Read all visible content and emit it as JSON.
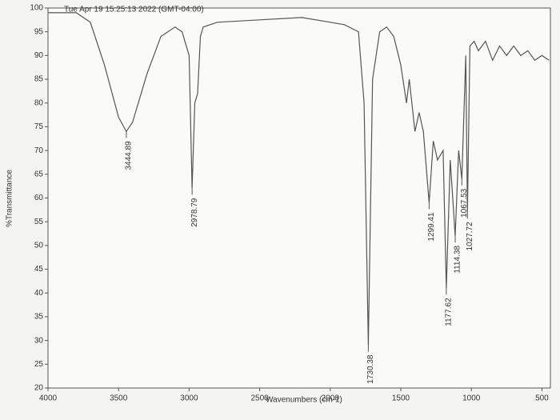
{
  "chart_data": {
    "type": "line",
    "title": "Tue Apr 19 15:25:13 2022 (GMT-04:00)",
    "xlabel": "Wavenumbers (cm-1)",
    "ylabel": "%Transmittance",
    "color": "#555555",
    "xlim": [
      4000,
      440
    ],
    "xticks": [
      4000,
      3500,
      3000,
      2500,
      2000,
      1500,
      1000,
      500
    ],
    "ylim": [
      20,
      100
    ],
    "yticks": [
      20,
      25,
      30,
      35,
      40,
      45,
      50,
      55,
      60,
      65,
      70,
      75,
      80,
      85,
      90,
      95,
      100
    ],
    "x": [
      4000,
      3800,
      3700,
      3600,
      3500,
      3444.89,
      3400,
      3300,
      3200,
      3100,
      3050,
      3000,
      2978.79,
      2960,
      2940,
      2920,
      2900,
      2800,
      2500,
      2200,
      2000,
      1900,
      1800,
      1760,
      1730.38,
      1700,
      1650,
      1600,
      1550,
      1500,
      1460,
      1440,
      1400,
      1370,
      1340,
      1299.41,
      1270,
      1240,
      1200,
      1177.62,
      1150,
      1114.38,
      1090,
      1067.53,
      1040,
      1027.72,
      1010,
      980,
      950,
      900,
      850,
      800,
      750,
      700,
      650,
      600,
      550,
      500,
      450
    ],
    "values": [
      99,
      99,
      97,
      88,
      77,
      74,
      76,
      86,
      94,
      96,
      95,
      90,
      62,
      80,
      82,
      94,
      96,
      97,
      97.5,
      98,
      97,
      96.5,
      95,
      80,
      29,
      85,
      95,
      96,
      94,
      88,
      80,
      85,
      74,
      78,
      74,
      59,
      72,
      68,
      70,
      41,
      68,
      52,
      70,
      64,
      90,
      57,
      92,
      93,
      91,
      93,
      89,
      92,
      90,
      92,
      90,
      91,
      89,
      90,
      89
    ],
    "annotations": [
      {
        "label": "3444.89",
        "x": 3444.89
      },
      {
        "label": "2978.79",
        "x": 2978.79
      },
      {
        "label": "1730.38",
        "x": 1730.38
      },
      {
        "label": "1299.41",
        "x": 1299.41
      },
      {
        "label": "1177.62",
        "x": 1177.62
      },
      {
        "label": "1114.38",
        "x": 1114.38
      },
      {
        "label": "1067.53",
        "x": 1067.53
      },
      {
        "label": "1027.72",
        "x": 1027.72
      }
    ]
  }
}
